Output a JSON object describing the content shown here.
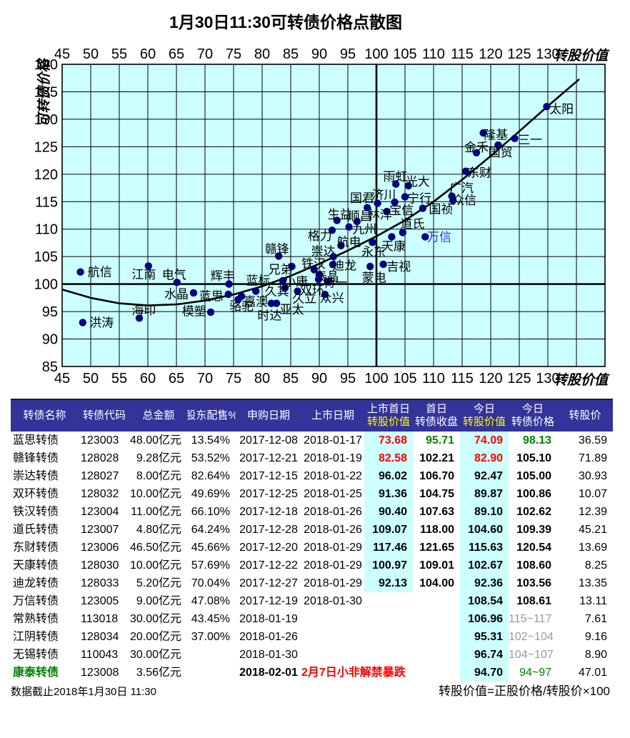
{
  "title": "1月30日11:30可转债价格点散图",
  "chart": {
    "bg_color": "#CCFFFF",
    "dot_color": "#000080",
    "highlight_label_color": "#3333CC",
    "axis_label_top": "转股价值",
    "axis_label_bottom": "转股价值",
    "y_axis_title": "可转债价格"
  },
  "chart_data": {
    "type": "scatter",
    "title": "1月30日11:30可转债价格点散图",
    "xlabel": "转股价值",
    "ylabel": "可转债价格",
    "xlim": [
      45,
      140
    ],
    "ylim": [
      85,
      140
    ],
    "grid": true,
    "x_ticks": [
      45,
      50,
      55,
      60,
      65,
      70,
      75,
      80,
      85,
      90,
      95,
      100,
      105,
      110,
      115,
      120,
      125,
      130
    ],
    "y_ticks": [
      140,
      135,
      130,
      125,
      120,
      115,
      110,
      105,
      100,
      95,
      90,
      85
    ],
    "emphasized_gridline_x": 100,
    "emphasized_gridline_y": 100,
    "points": [
      {
        "n": "航信",
        "x": 48.2,
        "y": 102.2,
        "lx": 51.6,
        "ly": 102.2
      },
      {
        "n": "洪涛",
        "x": 48.6,
        "y": 93.0,
        "lx": 51.9,
        "ly": 93.0
      },
      {
        "n": "江南",
        "x": 60.1,
        "y": 103.3,
        "lx": 59.3,
        "ly": 101.8
      },
      {
        "n": "电气",
        "x": 65.1,
        "y": 100.3,
        "lx": 64.6,
        "ly": 101.7
      },
      {
        "n": "海印",
        "x": 58.5,
        "y": 93.8,
        "lx": 59.3,
        "ly": 95.3
      },
      {
        "n": "水晶",
        "x": 68.0,
        "y": 98.4,
        "lx": 65.0,
        "ly": 98.2
      },
      {
        "n": "模塑",
        "x": 71.0,
        "y": 94.9,
        "lx": 68.1,
        "ly": 95.1
      },
      {
        "n": "辉丰",
        "x": 74.2,
        "y": 100.0,
        "lx": 73.1,
        "ly": 101.5
      },
      {
        "n": "蓝思",
        "x": 74.09,
        "y": 98.13,
        "lx": 71.1,
        "ly": 97.8
      },
      {
        "n": "蓝标",
        "x": 78.9,
        "y": 98.7,
        "lx": 79.3,
        "ly": 100.7
      },
      {
        "n": "嘉澳",
        "x": 76.4,
        "y": 97.8,
        "lx": 78.9,
        "ly": 96.8
      },
      {
        "n": "骆驼",
        "x": 75.8,
        "y": 97.2,
        "lx": 76.4,
        "ly": 96.0
      },
      {
        "n": "时达",
        "x": 81.6,
        "y": 96.5,
        "lx": 81.3,
        "ly": 94.3
      },
      {
        "n": "亚太",
        "x": 82.5,
        "y": 96.5,
        "lx": 85.2,
        "ly": 95.4
      },
      {
        "n": "久其",
        "x": 84.0,
        "y": 99.3,
        "lx": 82.6,
        "ly": 98.7
      },
      {
        "n": "久立",
        "x": 86.2,
        "y": 98.7,
        "lx": 87.4,
        "ly": 97.4
      },
      {
        "n": "兄弟",
        "x": 85.2,
        "y": 103.2,
        "lx": 83.2,
        "ly": 102.7
      },
      {
        "n": "小康",
        "x": 83.6,
        "y": 100.6,
        "lx": 85.9,
        "ly": 100.5
      },
      {
        "n": "赣锋",
        "x": 82.9,
        "y": 105.1,
        "lx": 82.6,
        "ly": 106.4
      },
      {
        "n": "铁汉",
        "x": 89.1,
        "y": 102.62,
        "lx": 89.0,
        "ly": 103.7
      },
      {
        "n": "泰晶",
        "x": 90.0,
        "y": 101.7,
        "lx": 91.3,
        "ly": 101.4
      },
      {
        "n": "双环",
        "x": 89.87,
        "y": 100.86,
        "lx": 88.75,
        "ly": 98.9
      },
      {
        "n": "特一",
        "x": 91.5,
        "y": 100.4,
        "lx": 92.8,
        "ly": 100.3
      },
      {
        "n": "众兴",
        "x": 91.0,
        "y": 98.1,
        "lx": 92.2,
        "ly": 97.5
      },
      {
        "n": "崇达",
        "x": 92.47,
        "y": 105.0,
        "lx": 90.7,
        "ly": 106.0
      },
      {
        "n": "迪龙",
        "x": 92.36,
        "y": 103.56,
        "lx": 94.4,
        "ly": 103.4
      },
      {
        "n": "蒙电",
        "x": 98.9,
        "y": 103.2,
        "lx": 99.6,
        "ly": 101.2
      },
      {
        "n": "吉视",
        "x": 101.2,
        "y": 103.6,
        "lx": 103.9,
        "ly": 103.2
      },
      {
        "n": "生益",
        "x": 93.1,
        "y": 111.6,
        "lx": 93.6,
        "ly": 112.7
      },
      {
        "n": "格力",
        "x": 92.25,
        "y": 109.8,
        "lx": 90.1,
        "ly": 108.8
      },
      {
        "n": "九州",
        "x": 95.2,
        "y": 110.4,
        "lx": 97.9,
        "ly": 110.0
      },
      {
        "n": "航电",
        "x": 93.8,
        "y": 107.0,
        "lx": 95.2,
        "ly": 107.7
      },
      {
        "n": "顺昌",
        "x": 96.6,
        "y": 111.4,
        "lx": 97.1,
        "ly": 112.4
      },
      {
        "n": "林洋",
        "x": 101.8,
        "y": 113.2,
        "lx": 100.6,
        "ly": 112.6
      },
      {
        "n": "国君",
        "x": 98.4,
        "y": 113.9,
        "lx": 97.5,
        "ly": 115.7
      },
      {
        "n": "济川",
        "x": 100.2,
        "y": 114.7,
        "lx": 101.3,
        "ly": 116.3
      },
      {
        "n": "宝信",
        "x": 103.2,
        "y": 114.9,
        "lx": 104.4,
        "ly": 113.5
      },
      {
        "n": "雨虹",
        "x": 103.4,
        "y": 118.2,
        "lx": 103.3,
        "ly": 119.6
      },
      {
        "n": "光大",
        "x": 105.6,
        "y": 117.9,
        "lx": 107.2,
        "ly": 118.7
      },
      {
        "n": "宁行",
        "x": 105.0,
        "y": 115.9,
        "lx": 107.5,
        "ly": 115.6
      },
      {
        "n": "国祯",
        "x": 108.1,
        "y": 113.8,
        "lx": 111.3,
        "ly": 113.7
      },
      {
        "n": "永东",
        "x": 99.3,
        "y": 107.6,
        "lx": 99.5,
        "ly": 105.9
      },
      {
        "n": "天康",
        "x": 102.67,
        "y": 108.6,
        "lx": 103.0,
        "ly": 106.9
      },
      {
        "n": "道氏",
        "x": 104.6,
        "y": 109.39,
        "lx": 106.3,
        "ly": 111.0
      },
      {
        "n": "万信",
        "x": 108.54,
        "y": 108.61,
        "lx": 111.0,
        "ly": 108.6,
        "c": "#3333CC"
      },
      {
        "n": "广汽",
        "x": 113.2,
        "y": 116.0,
        "lx": 114.9,
        "ly": 117.5
      },
      {
        "n": "众信",
        "x": 113.4,
        "y": 115.2,
        "lx": 115.4,
        "ly": 115.3
      },
      {
        "n": "东财",
        "x": 115.63,
        "y": 120.54,
        "lx": 118.0,
        "ly": 120.3
      },
      {
        "n": "金禾",
        "x": 117.5,
        "y": 123.9,
        "lx": 117.5,
        "ly": 124.9
      },
      {
        "n": "隆基",
        "x": 118.7,
        "y": 127.5,
        "lx": 120.9,
        "ly": 127.2
      },
      {
        "n": "国贸",
        "x": 121.3,
        "y": 125.3,
        "lx": 121.7,
        "ly": 124.0
      },
      {
        "n": "三一",
        "x": 124.2,
        "y": 126.5,
        "lx": 126.9,
        "ly": 126.3
      },
      {
        "n": "太阳",
        "x": 129.8,
        "y": 132.3,
        "lx": 132.4,
        "ly": 131.9
      }
    ],
    "trend_curve": [
      [
        45,
        99.0
      ],
      [
        50,
        97.5
      ],
      [
        55,
        96.5
      ],
      [
        60,
        96.1
      ],
      [
        65,
        96.3
      ],
      [
        70,
        97.0
      ],
      [
        75,
        98.1
      ],
      [
        80,
        99.6
      ],
      [
        85,
        101.5
      ],
      [
        90,
        103.7
      ],
      [
        95,
        106.1
      ],
      [
        100,
        108.7
      ],
      [
        105,
        111.6
      ],
      [
        110,
        115.0
      ],
      [
        115,
        119.0
      ],
      [
        120,
        123.3
      ],
      [
        125,
        127.8
      ],
      [
        130,
        132.4
      ],
      [
        135.5,
        137.3
      ]
    ]
  },
  "table": {
    "headers": [
      {
        "l1": "转债名称"
      },
      {
        "l1": "转债代码"
      },
      {
        "l1": "总金额"
      },
      {
        "l1": "股东配售%"
      },
      {
        "l1": "申购日期"
      },
      {
        "l1": "上市日期"
      },
      {
        "l1": "上市首日",
        "l2": "转股价值",
        "yellow": true
      },
      {
        "l1": "首日",
        "l2": "转债收盘"
      },
      {
        "l1": "今日",
        "l2": "转股价值",
        "yellow": true
      },
      {
        "l1": "今日",
        "l2": "转债价格"
      },
      {
        "l1": "转股价"
      }
    ],
    "rows": [
      {
        "cells": [
          {
            "t": "蓝思转债"
          },
          {
            "t": "123003"
          },
          {
            "t": "48.00亿元"
          },
          {
            "t": "13.54%"
          },
          {
            "t": "2017-12-08"
          },
          {
            "t": "2018-01-17"
          },
          {
            "t": "73.68",
            "c": "red",
            "b": 1
          },
          {
            "t": "95.71",
            "c": "green",
            "b": 1
          },
          {
            "t": "74.09",
            "c": "red",
            "b": 1
          },
          {
            "t": "98.13",
            "c": "green",
            "b": 1
          },
          {
            "t": "36.59"
          }
        ]
      },
      {
        "cells": [
          {
            "t": "赣锋转债"
          },
          {
            "t": "128028"
          },
          {
            "t": "9.28亿元"
          },
          {
            "t": "53.52%"
          },
          {
            "t": "2017-12-21"
          },
          {
            "t": "2018-01-19"
          },
          {
            "t": "82.58",
            "c": "red",
            "b": 1
          },
          {
            "t": "102.21",
            "b": 1
          },
          {
            "t": "82.90",
            "c": "red",
            "b": 1
          },
          {
            "t": "105.10",
            "b": 1
          },
          {
            "t": "71.89"
          }
        ]
      },
      {
        "cells": [
          {
            "t": "崇达转债"
          },
          {
            "t": "128027"
          },
          {
            "t": "8.00亿元"
          },
          {
            "t": "82.64%"
          },
          {
            "t": "2017-12-15"
          },
          {
            "t": "2018-01-22"
          },
          {
            "t": "96.02",
            "b": 1
          },
          {
            "t": "106.70",
            "b": 1
          },
          {
            "t": "92.47",
            "b": 1
          },
          {
            "t": "105.00",
            "b": 1
          },
          {
            "t": "30.93"
          }
        ]
      },
      {
        "cells": [
          {
            "t": "双环转债"
          },
          {
            "t": "128032"
          },
          {
            "t": "10.00亿元"
          },
          {
            "t": "49.69%"
          },
          {
            "t": "2017-12-25"
          },
          {
            "t": "2018-01-25"
          },
          {
            "t": "91.36",
            "b": 1
          },
          {
            "t": "104.75",
            "b": 1
          },
          {
            "t": "89.87",
            "b": 1
          },
          {
            "t": "100.86",
            "b": 1
          },
          {
            "t": "10.07"
          }
        ]
      },
      {
        "cells": [
          {
            "t": "铁汉转债"
          },
          {
            "t": "123004"
          },
          {
            "t": "11.00亿元"
          },
          {
            "t": "66.10%"
          },
          {
            "t": "2017-12-18"
          },
          {
            "t": "2018-01-26"
          },
          {
            "t": "90.40",
            "b": 1
          },
          {
            "t": "107.63",
            "b": 1
          },
          {
            "t": "89.10",
            "b": 1
          },
          {
            "t": "102.62",
            "b": 1
          },
          {
            "t": "12.39"
          }
        ]
      },
      {
        "cells": [
          {
            "t": "道氏转债"
          },
          {
            "t": "123007"
          },
          {
            "t": "4.80亿元"
          },
          {
            "t": "64.24%"
          },
          {
            "t": "2017-12-28"
          },
          {
            "t": "2018-01-26"
          },
          {
            "t": "109.07",
            "b": 1
          },
          {
            "t": "118.00",
            "b": 1
          },
          {
            "t": "104.60",
            "b": 1
          },
          {
            "t": "109.39",
            "b": 1
          },
          {
            "t": "45.21"
          }
        ]
      },
      {
        "cells": [
          {
            "t": "东财转债"
          },
          {
            "t": "123006"
          },
          {
            "t": "46.50亿元"
          },
          {
            "t": "45.66%"
          },
          {
            "t": "2017-12-20"
          },
          {
            "t": "2018-01-29"
          },
          {
            "t": "117.46",
            "b": 1
          },
          {
            "t": "121.65",
            "b": 1
          },
          {
            "t": "115.63",
            "b": 1
          },
          {
            "t": "120.54",
            "b": 1
          },
          {
            "t": "13.69"
          }
        ]
      },
      {
        "cells": [
          {
            "t": "天康转债"
          },
          {
            "t": "128030"
          },
          {
            "t": "10.00亿元"
          },
          {
            "t": "57.69%"
          },
          {
            "t": "2017-12-22"
          },
          {
            "t": "2018-01-29"
          },
          {
            "t": "100.97",
            "b": 1
          },
          {
            "t": "109.01",
            "b": 1
          },
          {
            "t": "102.67",
            "b": 1
          },
          {
            "t": "108.60",
            "b": 1
          },
          {
            "t": "8.25"
          }
        ]
      },
      {
        "cells": [
          {
            "t": "迪龙转债"
          },
          {
            "t": "128033"
          },
          {
            "t": "5.20亿元"
          },
          {
            "t": "70.04%"
          },
          {
            "t": "2017-12-27"
          },
          {
            "t": "2018-01-29"
          },
          {
            "t": "92.13",
            "b": 1
          },
          {
            "t": "104.00",
            "b": 1
          },
          {
            "t": "92.36",
            "b": 1
          },
          {
            "t": "103.56",
            "b": 1
          },
          {
            "t": "13.35"
          }
        ]
      },
      {
        "cells": [
          {
            "t": "万信转债"
          },
          {
            "t": "123005"
          },
          {
            "t": "9.00亿元"
          },
          {
            "t": "47.08%"
          },
          {
            "t": "2017-12-19"
          },
          {
            "t": "2018-01-30"
          },
          {
            "t": ""
          },
          {
            "t": ""
          },
          {
            "t": "108.54",
            "b": 1
          },
          {
            "t": "108.61",
            "b": 1
          },
          {
            "t": "13.11"
          }
        ]
      },
      {
        "cells": [
          {
            "t": "常熟转债"
          },
          {
            "t": "113018"
          },
          {
            "t": "30.00亿元"
          },
          {
            "t": "43.45%"
          },
          {
            "t": "2018-01-19"
          },
          {
            "t": ""
          },
          {
            "t": ""
          },
          {
            "t": ""
          },
          {
            "t": "106.96",
            "b": 1
          },
          {
            "t": "115~117",
            "c": "grey"
          },
          {
            "t": "7.61"
          }
        ]
      },
      {
        "cells": [
          {
            "t": "江阴转债"
          },
          {
            "t": "128034"
          },
          {
            "t": "20.00亿元"
          },
          {
            "t": "37.00%"
          },
          {
            "t": "2018-01-26"
          },
          {
            "t": ""
          },
          {
            "t": ""
          },
          {
            "t": ""
          },
          {
            "t": "95.31",
            "b": 1
          },
          {
            "t": "102~104",
            "c": "grey"
          },
          {
            "t": "9.16"
          }
        ]
      },
      {
        "cells": [
          {
            "t": "无锡转债"
          },
          {
            "t": "110043"
          },
          {
            "t": "30.00亿元"
          },
          {
            "t": ""
          },
          {
            "t": "2018-01-30"
          },
          {
            "t": ""
          },
          {
            "t": ""
          },
          {
            "t": ""
          },
          {
            "t": "96.74",
            "b": 1
          },
          {
            "t": "104~107",
            "c": "grey"
          },
          {
            "t": "8.90"
          }
        ]
      },
      {
        "cells": [
          {
            "t": "康泰转债",
            "c": "green",
            "b": 1
          },
          {
            "t": "123008"
          },
          {
            "t": "3.56亿元"
          },
          {
            "t": ""
          },
          {
            "t": "2018-02-01",
            "b": 1
          },
          {
            "t": "2月7日小非解禁暴跌",
            "c": "red",
            "b": 1
          },
          {
            "t": ""
          },
          {
            "t": ""
          },
          {
            "t": "94.70",
            "b": 1
          },
          {
            "t": "94~97",
            "c": "green"
          },
          {
            "t": "47.01"
          }
        ]
      }
    ]
  },
  "footer": {
    "left": "数据截止2018年1月30日 11:30",
    "right": "转股价值=正股价格/转股价×100"
  }
}
